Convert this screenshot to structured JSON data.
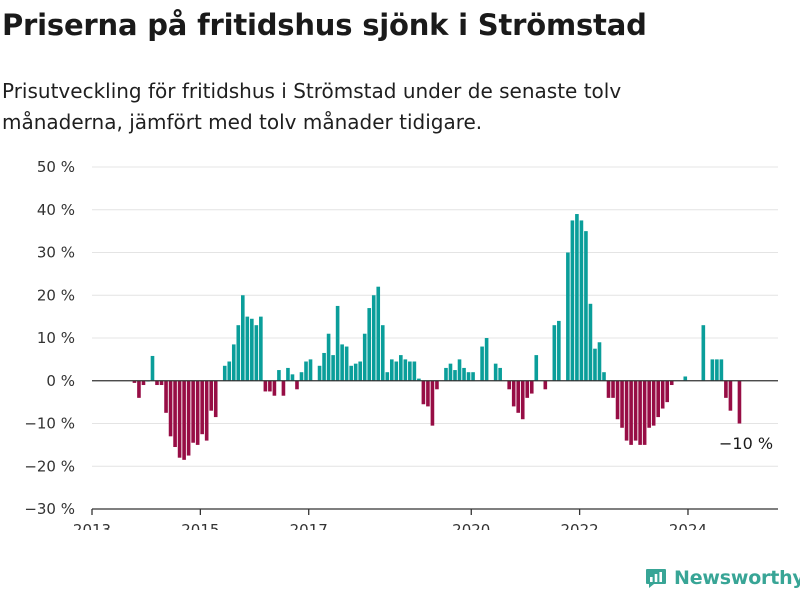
{
  "title": "Priserna på fritidshus sjönk i Strömstad",
  "subtitle": "Prisutveckling för fritidshus i Strömstad under de senaste tolv månaderna, jämfört med tolv månader tidigare.",
  "brand": {
    "name": "Newsworthy",
    "icon": "newsworthy-logo-icon"
  },
  "colors": {
    "positive": "#0a9e9a",
    "negative": "#970d45",
    "axis": "#333333",
    "grid": "#e4e4e4"
  },
  "chart_data": {
    "type": "bar",
    "y_unit": "%",
    "ylim": [
      -30,
      50
    ],
    "yticks": [
      -30,
      -20,
      -10,
      0,
      10,
      20,
      30,
      40,
      50
    ],
    "ytick_labels": [
      "−30 %",
      "−20 %",
      "−10 %",
      "0 %",
      "10 %",
      "20 %",
      "30 %",
      "40 %",
      "50 %"
    ],
    "xtick_labels": [
      "2013",
      "2015",
      "2017",
      "2020",
      "2022",
      "2024"
    ],
    "xtick_years": [
      2013,
      2015,
      2017,
      2020,
      2022,
      2024
    ],
    "grid": true,
    "annotation": {
      "text": "−10 %"
    },
    "series": [
      {
        "start": "2013-01",
        "values": [
          null,
          null,
          null,
          null,
          null,
          null,
          null,
          null,
          null,
          -0.5,
          -4,
          -1,
          0,
          5.8,
          -1,
          -1,
          -7.5,
          -13,
          -15.5,
          -18,
          -18.5,
          -17.5,
          -14.5,
          -15,
          -12.5,
          -14,
          -7,
          -8.5,
          null,
          3.5,
          4.5,
          8.5,
          13,
          20,
          15,
          14.5,
          13,
          15,
          -2.5,
          -2.5,
          -3.5,
          2.5,
          -3.5,
          3,
          1.5,
          -2,
          2,
          4.5,
          5,
          null,
          3.5,
          6.5,
          11,
          6,
          17.5,
          8.5,
          8,
          3.5,
          4,
          4.5,
          11,
          17,
          20,
          22,
          13,
          2,
          5,
          4.5,
          6,
          5,
          4.5,
          4.5,
          0.5,
          -5.5,
          -6,
          -10.5,
          -2,
          null,
          3,
          4,
          2.5,
          5,
          3,
          2,
          2,
          null,
          8,
          10,
          null,
          4,
          3,
          null,
          -2,
          -6,
          -7.5,
          -9,
          -4,
          -3,
          6,
          null,
          -2,
          null,
          13,
          14,
          null,
          30,
          37.5,
          39,
          37.5,
          35,
          18,
          7.5,
          9,
          2,
          -4,
          -4,
          -9,
          -11,
          -14,
          -15,
          -14,
          -15,
          -15,
          -11,
          -10.5,
          -8.5,
          -6.5,
          -5,
          -1,
          null,
          null,
          1,
          null,
          null,
          null,
          13,
          null,
          5,
          5,
          5,
          -4,
          -7,
          null,
          -10
        ]
      }
    ]
  }
}
